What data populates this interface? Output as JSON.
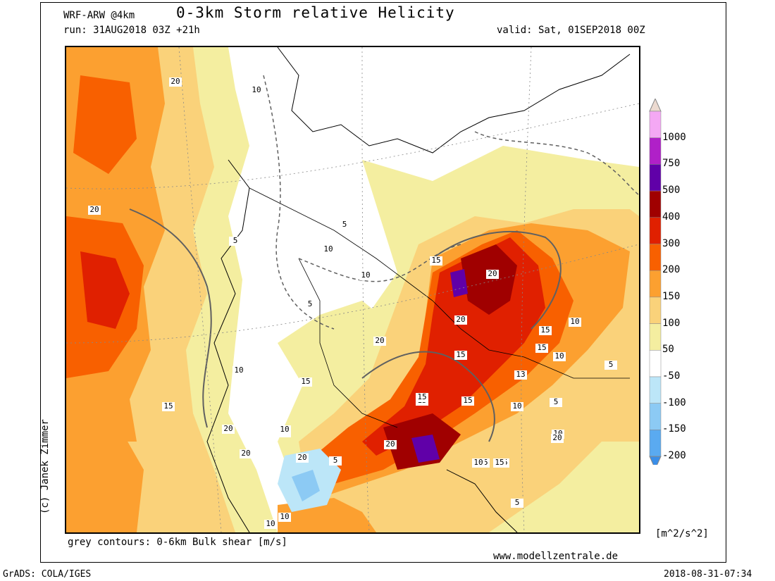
{
  "header": {
    "model": "WRF-ARW @4km",
    "title": "0-3km Storm relative Helicity",
    "run": "run: 31AUG2018 03Z +21h",
    "valid": "valid: Sat, 01SEP2018 00Z"
  },
  "author": "(c) Janek Zimmer",
  "contour_note": "grey contours: 0-6km Bulk shear [m/s]",
  "website": "www.modellzentrale.de",
  "software": "GrADS: COLA/IGES",
  "timestamp": "2018-08-31-07:34",
  "colorbar": {
    "units": "[m^2/s^2]",
    "levels": [
      {
        "label": "1000",
        "color": "#f4a8f4"
      },
      {
        "label": "750",
        "color": "#b020c8"
      },
      {
        "label": "500",
        "color": "#6000a8"
      },
      {
        "label": "400",
        "color": "#a00000"
      },
      {
        "label": "300",
        "color": "#e02000"
      },
      {
        "label": "200",
        "color": "#f86000"
      },
      {
        "label": "150",
        "color": "#fca030"
      },
      {
        "label": "100",
        "color": "#fad27a"
      },
      {
        "label": "50",
        "color": "#f4eea0"
      },
      {
        "label": "-50",
        "color": "#ffffff"
      },
      {
        "label": "-100",
        "color": "#bce6f8"
      },
      {
        "label": "-150",
        "color": "#8ccaf4"
      },
      {
        "label": "-200",
        "color": "#5aaaf0"
      }
    ],
    "top_color": "#ecdad0",
    "bottom_color": "#3a8ee8"
  },
  "contour_labels": [
    "20",
    "10",
    "20",
    "5",
    "10",
    "5",
    "10",
    "15",
    "20",
    "10",
    "5",
    "20",
    "15",
    "15",
    "10",
    "15",
    "20",
    "15",
    "15",
    "10",
    "15",
    "10",
    "15",
    "20",
    "20",
    "15",
    "10",
    "5",
    "20",
    "20",
    "10",
    "15",
    "10",
    "15",
    "15",
    "5",
    "20",
    "10",
    "10",
    "5",
    "20",
    "5",
    "13"
  ]
}
